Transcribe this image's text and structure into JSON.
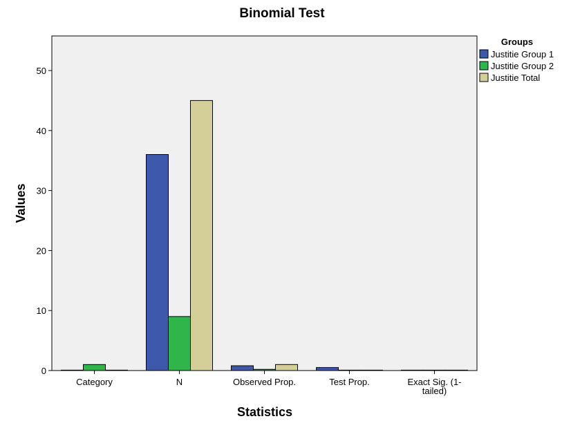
{
  "chart_data": {
    "type": "bar",
    "title": "Binomial Test",
    "xlabel": "Statistics",
    "ylabel": "Values",
    "categories": [
      "Category",
      "N",
      "Observed Prop.",
      "Test Prop.",
      "Exact Sig. (1-tailed)"
    ],
    "category_label_lines": [
      [
        "Category"
      ],
      [
        "N"
      ],
      [
        "Observed Prop."
      ],
      [
        "Test Prop."
      ],
      [
        "Exact Sig. (1-",
        "tailed)"
      ]
    ],
    "ylim": [
      0,
      55
    ],
    "yticks": [
      0,
      10,
      20,
      30,
      40,
      50
    ],
    "grid": false,
    "legend": {
      "title": "Groups",
      "placement": "right"
    },
    "series": [
      {
        "name": "Justitie Group 1",
        "color": "#3e59ab",
        "values": [
          0,
          36,
          0.8,
          0.5,
          0.0
        ]
      },
      {
        "name": "Justitie Group 2",
        "color": "#2fb54a",
        "values": [
          1,
          9,
          0.2,
          0,
          0
        ]
      },
      {
        "name": "Justitie Total",
        "color": "#d4cf98",
        "values": [
          0,
          45,
          1.0,
          0,
          0
        ]
      }
    ]
  }
}
